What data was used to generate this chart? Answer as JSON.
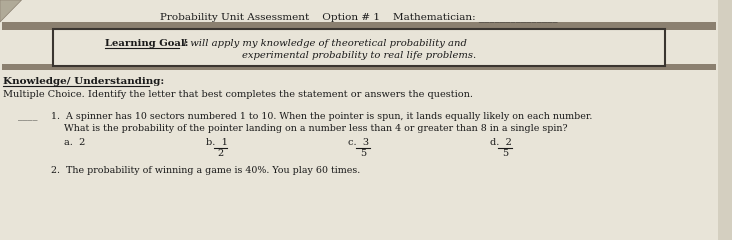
{
  "bg_color": "#d4cfc0",
  "paper_color": "#e8e4d8",
  "band_color": "#8b8070",
  "title_line": "Probability Unit Assessment    Option # 1    Mathematician: _______________",
  "learning_goal_label": "Learning Goal:",
  "learning_goal_rest1": " I will apply my knowledge of theoretical probability and",
  "learning_goal_line2": "experimental probability to real life problems.",
  "section_header": "Knowledge/ Understanding:",
  "multiple_choice_intro": "Multiple Choice. Identify the letter that best completes the statement or answers the question.",
  "q1_blank": "____",
  "q1_text1": "1.  A spinner has 10 sectors numbered 1 to 10. When the pointer is spun, it lands equally likely on each number.",
  "q1_text2": "What is the probability of the pointer landing on a number less than 4 or greater than 8 in a single spin?",
  "q1_a": "a.  2",
  "q1_b_num": "b.  1",
  "q1_b_den": "2",
  "q1_c_num": "c.  3",
  "q1_c_den": "5",
  "q1_d_num": "d.  2",
  "q1_d_den": "5",
  "q2_text": "2.  The probability of winning a game is 40%. You play 60 times.",
  "text_color": "#1a1a1a",
  "edge_color": "#3a3530",
  "corner_color": "#b0aa98"
}
